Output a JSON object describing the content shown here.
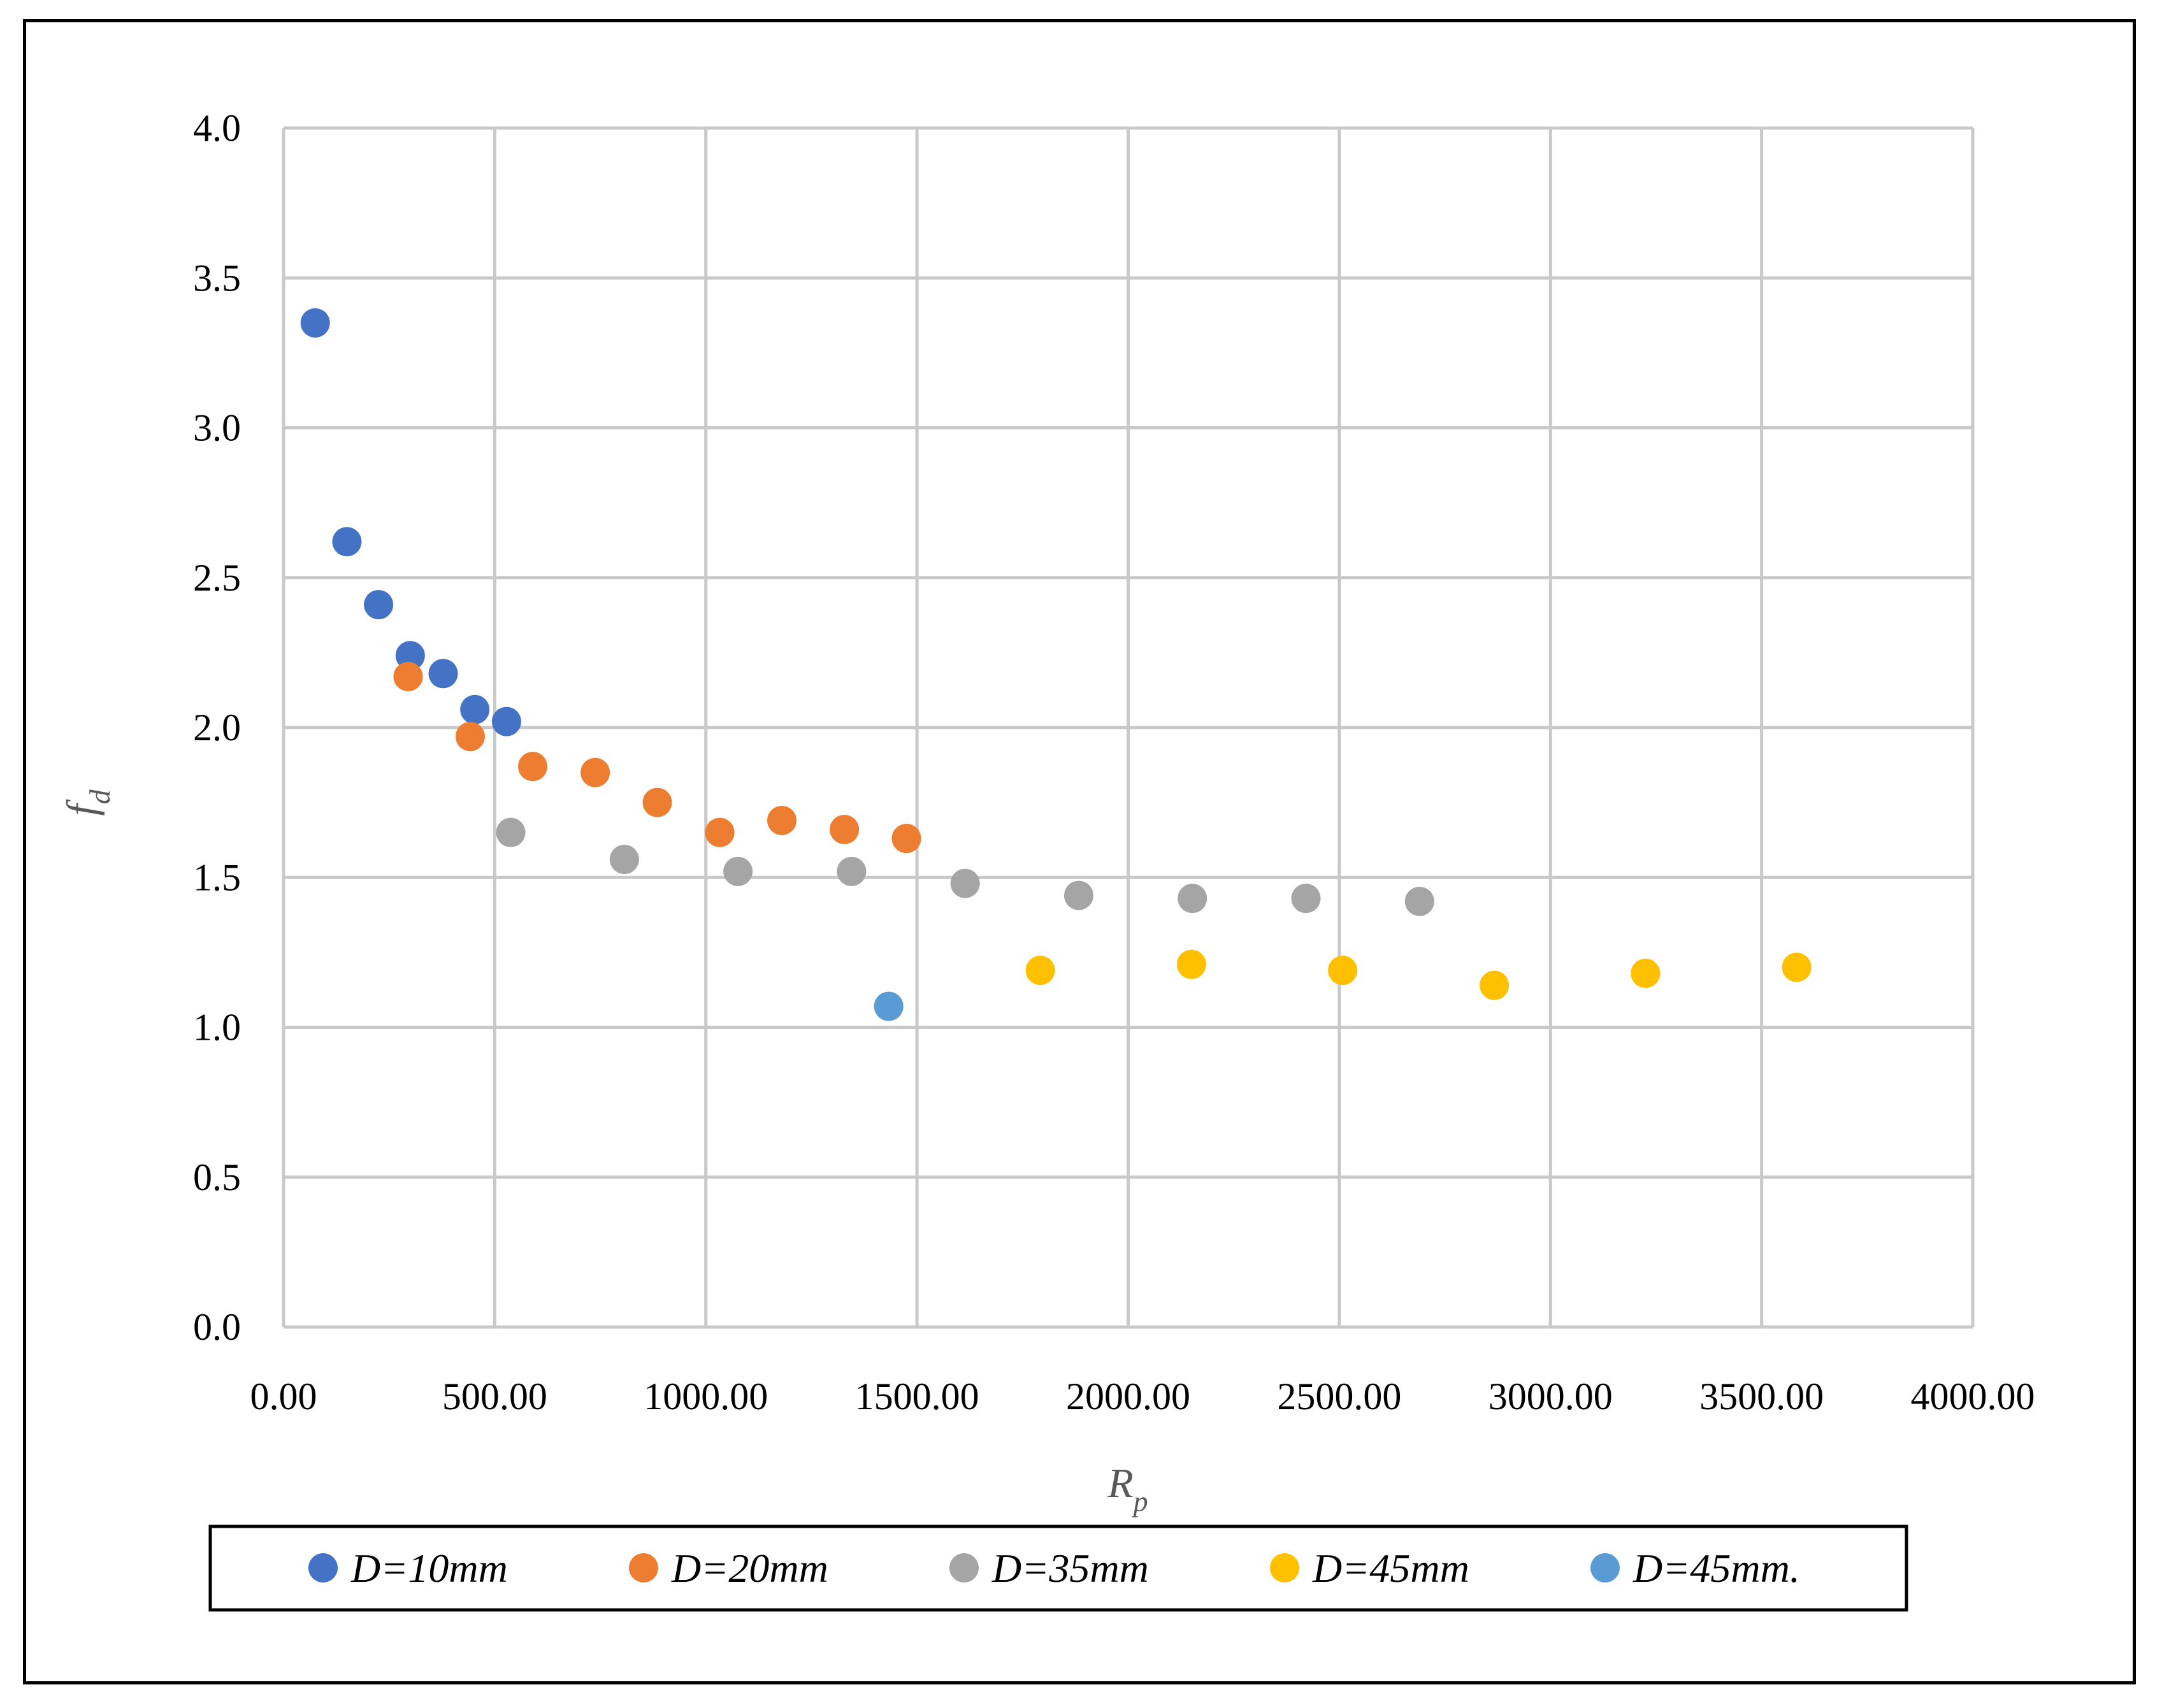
{
  "chart_data": {
    "type": "scatter",
    "title": "",
    "xlabel": {
      "main": "R",
      "sub": "p"
    },
    "ylabel": {
      "main": "f",
      "sub": "d"
    },
    "xlim": [
      0,
      4000
    ],
    "ylim": [
      0,
      4.0
    ],
    "x_ticks": [
      "0.00",
      "500.00",
      "1000.00",
      "1500.00",
      "2000.00",
      "2500.00",
      "3000.00",
      "3500.00",
      "4000.00"
    ],
    "y_ticks": [
      "0.0",
      "0.5",
      "1.0",
      "1.5",
      "2.0",
      "2.5",
      "3.0",
      "3.5",
      "4.0"
    ],
    "grid": true,
    "legend_position": "bottom",
    "series": [
      {
        "name": "D=10mm",
        "color": "#4472C4",
        "points": [
          [
            75,
            3.35
          ],
          [
            150,
            2.62
          ],
          [
            225,
            2.41
          ],
          [
            300,
            2.24
          ],
          [
            378,
            2.18
          ],
          [
            453,
            2.06
          ],
          [
            528,
            2.02
          ]
        ]
      },
      {
        "name": "D=20mm",
        "color": "#ED7D31",
        "points": [
          [
            295,
            2.17
          ],
          [
            442,
            1.97
          ],
          [
            590,
            1.87
          ],
          [
            738,
            1.85
          ],
          [
            885,
            1.75
          ],
          [
            1033,
            1.65
          ],
          [
            1180,
            1.69
          ],
          [
            1328,
            1.66
          ],
          [
            1475,
            1.63
          ]
        ]
      },
      {
        "name": "D=35mm",
        "color": "#A5A5A5",
        "points": [
          [
            538,
            1.65
          ],
          [
            807,
            1.56
          ],
          [
            1076,
            1.52
          ],
          [
            1345,
            1.52
          ],
          [
            1614,
            1.48
          ],
          [
            1883,
            1.44
          ],
          [
            2152,
            1.43
          ],
          [
            2421,
            1.43
          ],
          [
            2690,
            1.42
          ]
        ]
      },
      {
        "name": "D=45mm",
        "color": "#FFC000",
        "points": [
          [
            1792,
            1.19
          ],
          [
            2150,
            1.21
          ],
          [
            2508,
            1.19
          ],
          [
            2867,
            1.14
          ],
          [
            3225,
            1.18
          ],
          [
            3583,
            1.2
          ]
        ]
      },
      {
        "name": "D=45mm.",
        "color": "#5B9BD5",
        "points": [
          [
            1433,
            1.07
          ]
        ]
      }
    ]
  }
}
